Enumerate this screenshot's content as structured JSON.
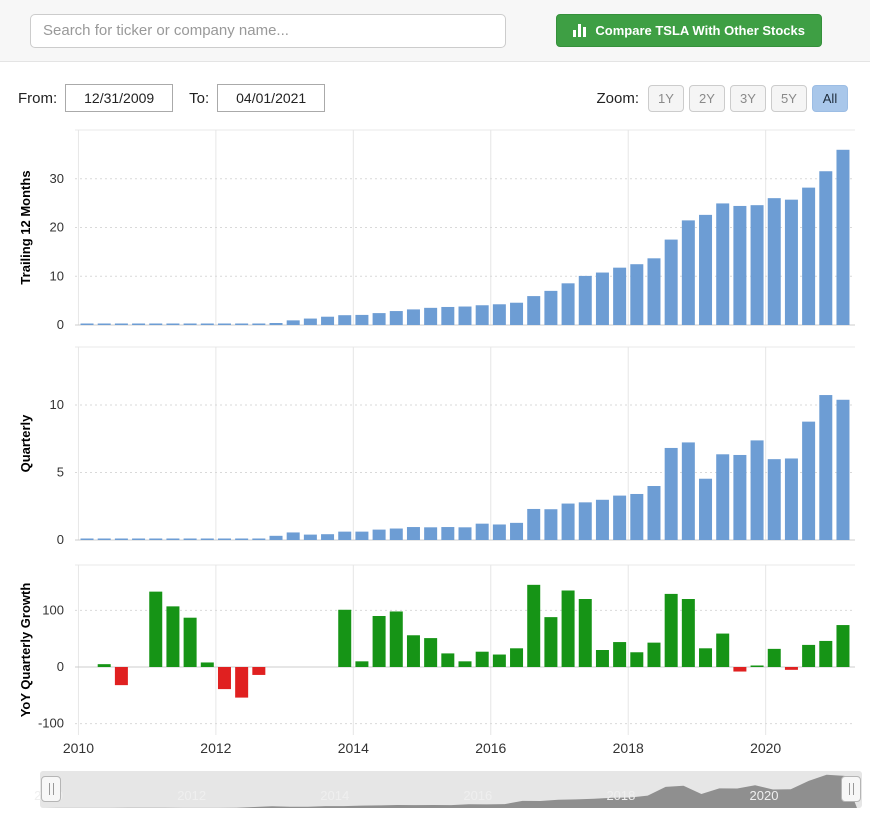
{
  "topbar": {
    "search_placeholder": "Search for ticker or company name...",
    "compare_button": "Compare TSLA With Other Stocks"
  },
  "controls": {
    "from_label": "From:",
    "from_value": "12/31/2009",
    "to_label": "To:",
    "to_value": "04/01/2021",
    "zoom_label": "Zoom:",
    "zoom_options": [
      "1Y",
      "2Y",
      "3Y",
      "5Y",
      "All"
    ],
    "zoom_selected": "All"
  },
  "axis": {
    "years": [
      "2010",
      "2012",
      "2014",
      "2016",
      "2018",
      "2020"
    ],
    "x_range": [
      2009.95,
      2021.3
    ]
  },
  "colors": {
    "bar_blue": "#6d9dd4",
    "bar_green": "#169416",
    "bar_red": "#e02020",
    "button_green": "#3e9f44",
    "zoom_active_blue": "#a9c7ea",
    "navigator_area": "#8f8f8f",
    "navigator_bg": "#e6e6e6",
    "gridline": "#e6e6e6"
  },
  "chart_data": [
    {
      "type": "bar",
      "ylabel": "Trailing 12 Months",
      "x_start": 2010.0,
      "x_step": 0.25,
      "yticks": [
        0,
        10,
        20,
        30
      ],
      "ylim": [
        0,
        40
      ],
      "color": "#6d9dd4",
      "values": [
        0.09,
        0.1,
        0.11,
        0.12,
        0.15,
        0.18,
        0.2,
        0.2,
        0.19,
        0.15,
        0.15,
        0.41,
        0.95,
        1.32,
        1.7,
        2.01,
        2.07,
        2.44,
        2.86,
        3.2,
        3.52,
        3.7,
        3.79,
        4.05,
        4.25,
        4.57,
        5.93,
        7.0,
        8.55,
        10.07,
        10.76,
        11.76,
        12.47,
        13.68,
        17.52,
        21.46,
        22.59,
        24.94,
        24.42,
        24.58,
        26.02,
        25.71,
        28.18,
        31.54,
        35.94
      ]
    },
    {
      "type": "bar",
      "ylabel": "Quarterly",
      "x_start": 2010.0,
      "x_step": 0.25,
      "yticks": [
        0,
        5,
        10
      ],
      "ylim": [
        0,
        14.3
      ],
      "color": "#6d9dd4",
      "values": [
        0.02,
        0.03,
        0.03,
        0.04,
        0.05,
        0.06,
        0.06,
        0.04,
        0.03,
        0.03,
        0.05,
        0.31,
        0.56,
        0.4,
        0.43,
        0.62,
        0.62,
        0.77,
        0.85,
        0.96,
        0.94,
        0.96,
        0.94,
        1.21,
        1.15,
        1.27,
        2.3,
        2.28,
        2.7,
        2.79,
        2.98,
        3.29,
        3.41,
        4.0,
        6.82,
        7.23,
        4.54,
        6.35,
        6.3,
        7.38,
        5.99,
        6.04,
        8.77,
        10.74,
        10.39
      ]
    },
    {
      "type": "bar",
      "ylabel": "YoY Quarterly Growth",
      "x_start": 2010.0,
      "x_step": 0.25,
      "yticks": [
        -100,
        0,
        100
      ],
      "ylim": [
        -120,
        180
      ],
      "color_positive": "#169416",
      "color_negative": "#e02020",
      "values": [
        null,
        5,
        -32,
        null,
        133,
        107,
        87,
        8,
        -39,
        -54,
        -14,
        null,
        null,
        null,
        null,
        101,
        10,
        90,
        98,
        56,
        51,
        24,
        10,
        27,
        22,
        33,
        145,
        88,
        135,
        120,
        30,
        44,
        26,
        43,
        129,
        120,
        33,
        59,
        -8,
        2,
        32,
        -5,
        39,
        46,
        74
      ]
    }
  ],
  "navigator": {
    "labels": [
      "2010",
      "2012",
      "2014",
      "2016",
      "2018",
      "2020"
    ]
  }
}
